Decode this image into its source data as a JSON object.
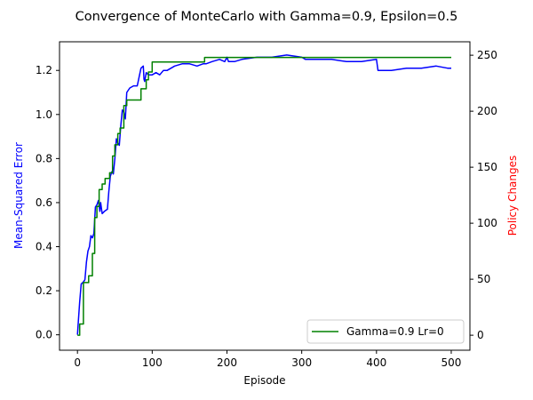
{
  "chart_data": {
    "type": "line",
    "title": "Convergence of MonteCarlo with Gamma=0.9, Epsilon=0.5",
    "xlabel": "Episode",
    "ylabel_left": "Mean-Squared Error",
    "ylabel_right": "Policy Changes",
    "xlim": [
      -24,
      525
    ],
    "ylim_left": [
      -0.07,
      1.33
    ],
    "ylim_right": [
      -13.4,
      262
    ],
    "x_ticks": [
      0,
      100,
      200,
      300,
      400,
      500
    ],
    "y_ticks_left": [
      0.0,
      0.2,
      0.4,
      0.6,
      0.8,
      1.0,
      1.2
    ],
    "y_ticks_right": [
      0,
      50,
      100,
      150,
      200,
      250
    ],
    "grid": false,
    "legend_position": "lower-right",
    "series": [
      {
        "axis": "left",
        "color": "#0000ff",
        "points": [
          [
            0,
            0.0
          ],
          [
            1,
            0.05
          ],
          [
            3,
            0.15
          ],
          [
            5,
            0.23
          ],
          [
            8,
            0.24
          ],
          [
            10,
            0.25
          ],
          [
            12,
            0.33
          ],
          [
            14,
            0.38
          ],
          [
            16,
            0.4
          ],
          [
            18,
            0.45
          ],
          [
            20,
            0.44
          ],
          [
            22,
            0.46
          ],
          [
            24,
            0.58
          ],
          [
            26,
            0.59
          ],
          [
            28,
            0.61
          ],
          [
            30,
            0.56
          ],
          [
            31,
            0.6
          ],
          [
            33,
            0.55
          ],
          [
            36,
            0.56
          ],
          [
            40,
            0.57
          ],
          [
            42,
            0.65
          ],
          [
            44,
            0.72
          ],
          [
            46,
            0.74
          ],
          [
            48,
            0.73
          ],
          [
            50,
            0.8
          ],
          [
            52,
            0.89
          ],
          [
            54,
            0.87
          ],
          [
            56,
            0.86
          ],
          [
            58,
            0.95
          ],
          [
            60,
            1.02
          ],
          [
            62,
            1.01
          ],
          [
            64,
            0.98
          ],
          [
            66,
            1.1
          ],
          [
            68,
            1.11
          ],
          [
            70,
            1.12
          ],
          [
            75,
            1.13
          ],
          [
            80,
            1.13
          ],
          [
            85,
            1.21
          ],
          [
            88,
            1.22
          ],
          [
            89,
            1.16
          ],
          [
            90,
            1.15
          ],
          [
            92,
            1.19
          ],
          [
            95,
            1.18
          ],
          [
            100,
            1.18
          ],
          [
            105,
            1.19
          ],
          [
            110,
            1.18
          ],
          [
            115,
            1.2
          ],
          [
            120,
            1.2
          ],
          [
            130,
            1.22
          ],
          [
            140,
            1.23
          ],
          [
            150,
            1.23
          ],
          [
            160,
            1.22
          ],
          [
            168,
            1.23
          ],
          [
            172,
            1.23
          ],
          [
            180,
            1.24
          ],
          [
            190,
            1.25
          ],
          [
            197,
            1.24
          ],
          [
            200,
            1.26
          ],
          [
            202,
            1.24
          ],
          [
            210,
            1.24
          ],
          [
            220,
            1.25
          ],
          [
            240,
            1.26
          ],
          [
            260,
            1.26
          ],
          [
            280,
            1.27
          ],
          [
            300,
            1.26
          ],
          [
            305,
            1.25
          ],
          [
            320,
            1.25
          ],
          [
            340,
            1.25
          ],
          [
            360,
            1.24
          ],
          [
            380,
            1.24
          ],
          [
            400,
            1.25
          ],
          [
            402,
            1.2
          ],
          [
            420,
            1.2
          ],
          [
            440,
            1.21
          ],
          [
            460,
            1.21
          ],
          [
            480,
            1.22
          ],
          [
            495,
            1.21
          ],
          [
            500,
            1.21
          ]
        ]
      },
      {
        "name": "Gamma=0.9 Lr=0",
        "axis": "right",
        "color": "#008000",
        "points": [
          [
            0,
            0
          ],
          [
            3,
            0
          ],
          [
            3,
            10
          ],
          [
            8,
            10
          ],
          [
            8,
            47
          ],
          [
            15,
            47
          ],
          [
            15,
            53
          ],
          [
            20,
            53
          ],
          [
            20,
            73
          ],
          [
            23,
            73
          ],
          [
            23,
            105
          ],
          [
            26,
            105
          ],
          [
            26,
            115
          ],
          [
            29,
            115
          ],
          [
            29,
            130
          ],
          [
            33,
            130
          ],
          [
            33,
            135
          ],
          [
            37,
            135
          ],
          [
            37,
            140
          ],
          [
            43,
            140
          ],
          [
            43,
            145
          ],
          [
            47,
            145
          ],
          [
            47,
            160
          ],
          [
            50,
            160
          ],
          [
            50,
            170
          ],
          [
            54,
            170
          ],
          [
            54,
            180
          ],
          [
            57,
            180
          ],
          [
            57,
            185
          ],
          [
            62,
            185
          ],
          [
            62,
            205
          ],
          [
            66,
            205
          ],
          [
            66,
            210
          ],
          [
            85,
            210
          ],
          [
            85,
            220
          ],
          [
            92,
            220
          ],
          [
            92,
            228
          ],
          [
            95,
            228
          ],
          [
            95,
            235
          ],
          [
            100,
            235
          ],
          [
            100,
            244
          ],
          [
            170,
            244
          ],
          [
            170,
            248
          ],
          [
            500,
            248
          ]
        ]
      }
    ]
  }
}
